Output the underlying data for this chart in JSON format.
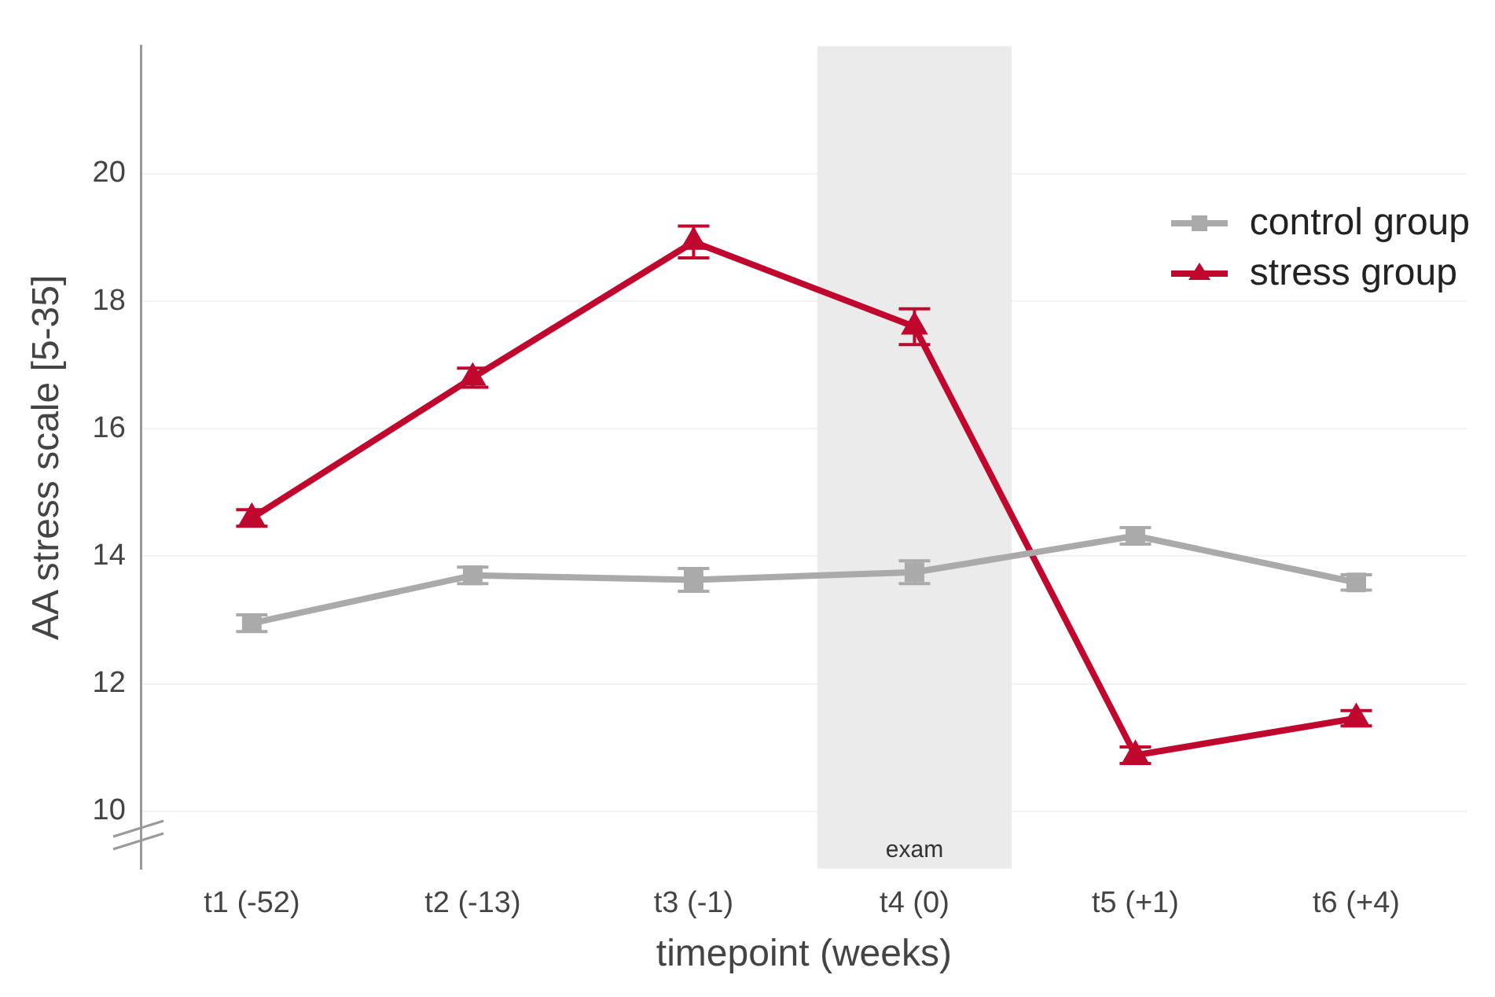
{
  "chart_data": {
    "type": "line",
    "xlabel": "timepoint (weeks)",
    "ylabel": "AA stress scale [5-35]",
    "categories": [
      "t1 (-52)",
      "t2 (-13)",
      "t3 (-1)",
      "t4 (0)",
      "t5 (+1)",
      "t6 (+4)"
    ],
    "series": [
      {
        "name": "control group",
        "color": "#aaaaaa",
        "marker": "square",
        "values": [
          12.95,
          13.7,
          13.63,
          13.75,
          14.32,
          13.59
        ],
        "errors": [
          0.13,
          0.13,
          0.18,
          0.18,
          0.13,
          0.12
        ]
      },
      {
        "name": "stress group",
        "color": "#c0072d",
        "marker": "triangle",
        "values": [
          14.6,
          16.8,
          18.93,
          17.6,
          10.88,
          11.46
        ],
        "errors": [
          0.13,
          0.15,
          0.25,
          0.28,
          0.13,
          0.12
        ]
      }
    ],
    "ylim": [
      9.1,
      22
    ],
    "yticks": [
      10,
      12,
      14,
      16,
      18,
      20
    ],
    "grid": "y",
    "legend": "top right",
    "bands": [
      {
        "axis": "x",
        "from": "t4 (0)",
        "to": "t4 (0)",
        "label": "exam",
        "color": "#ebebeb"
      }
    ]
  }
}
